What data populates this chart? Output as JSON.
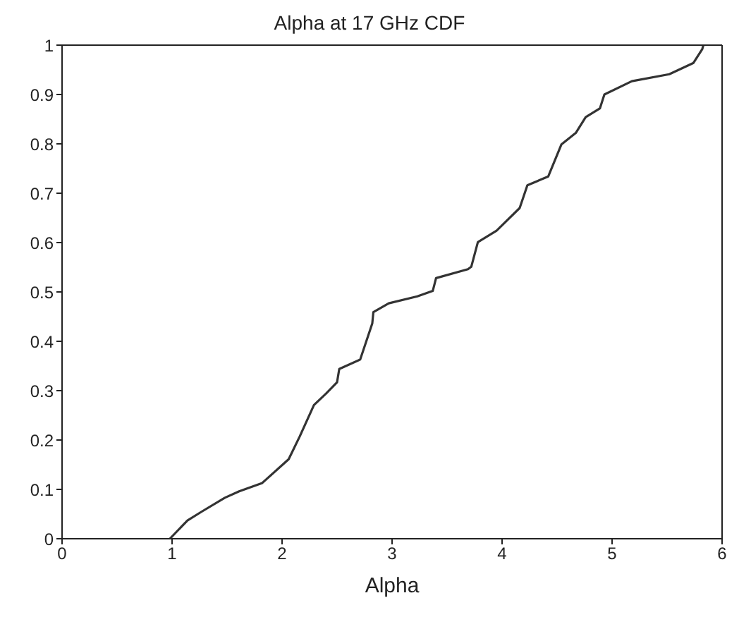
{
  "chart_data": {
    "type": "line",
    "title": "Alpha at 17 GHz CDF",
    "xlabel": "Alpha",
    "x": [
      0.98,
      1.14,
      1.27,
      1.48,
      1.61,
      1.82,
      2.06,
      2.16,
      2.29,
      2.4,
      2.5,
      2.52,
      2.71,
      2.82,
      2.83,
      2.97,
      3.23,
      3.37,
      3.4,
      3.69,
      3.72,
      3.78,
      3.95,
      4.16,
      4.23,
      4.42,
      4.54,
      4.67,
      4.76,
      4.89,
      4.93,
      5.18,
      5.52,
      5.74,
      5.82,
      5.83
    ],
    "series": [
      {
        "color": "#333333",
        "values": [
          0,
          0.037,
          0.055,
          0.083,
          0.096,
          0.113,
          0.161,
          0.207,
          0.271,
          0.294,
          0.317,
          0.344,
          0.363,
          0.436,
          0.459,
          0.477,
          0.491,
          0.502,
          0.528,
          0.546,
          0.551,
          0.601,
          0.624,
          0.67,
          0.716,
          0.734,
          0.799,
          0.822,
          0.854,
          0.872,
          0.9,
          0.927,
          0.941,
          0.964,
          0.992,
          1.0
        ]
      }
    ],
    "xlim": [
      0,
      6
    ],
    "xticks": [
      0,
      1,
      2,
      3,
      4,
      5,
      6
    ],
    "ylim": [
      0,
      1
    ],
    "yticks": [
      0,
      0.1,
      0.2,
      0.3,
      0.4,
      0.5,
      0.6,
      0.7,
      0.8,
      0.9,
      1
    ],
    "legend": false,
    "marker": "none",
    "line_style": "solid"
  }
}
